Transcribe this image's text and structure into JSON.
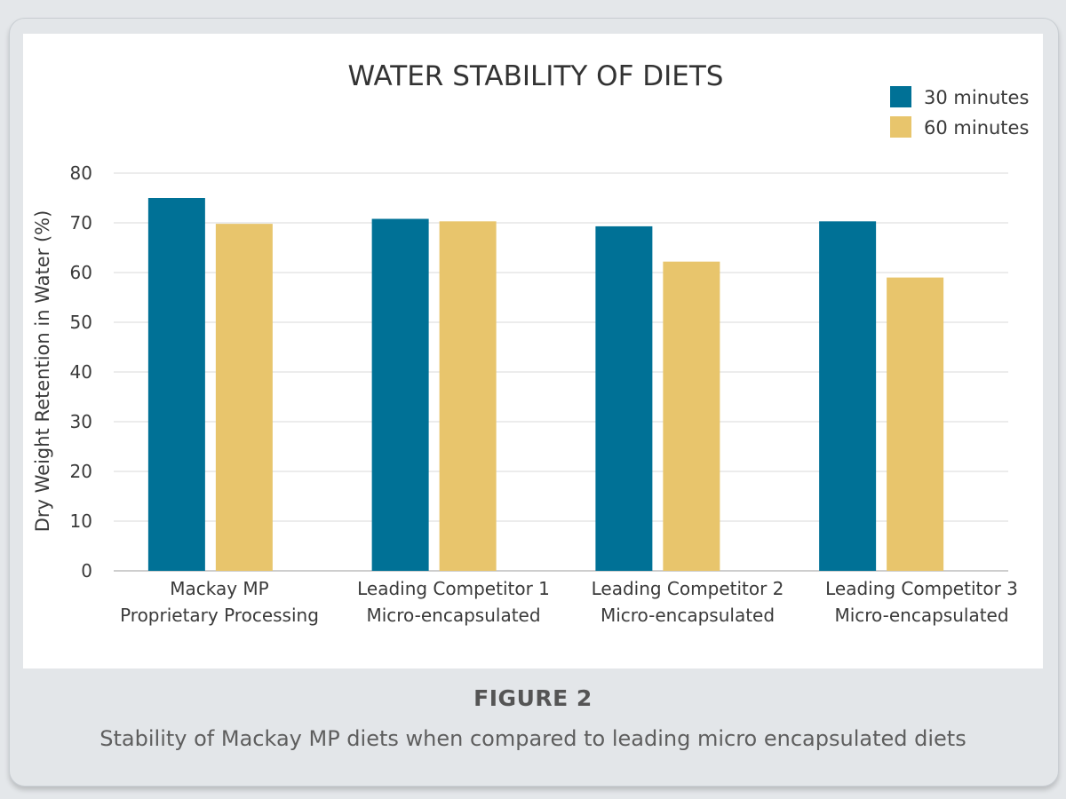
{
  "figure": {
    "label": "FIGURE 2",
    "caption": "Stability of Mackay MP diets when compared to leading micro encapsulated diets"
  },
  "chart_data": {
    "type": "bar",
    "title": "WATER STABILITY OF DIETS",
    "xlabel": "",
    "ylabel": "Dry Weight Retention in Water (%)",
    "ylim": [
      0,
      80
    ],
    "yticks": [
      0,
      10,
      20,
      30,
      40,
      50,
      60,
      70,
      80
    ],
    "grid": true,
    "legend_position": "top-right",
    "categories": [
      [
        "Mackay MP",
        "Proprietary Processing"
      ],
      [
        "Leading Competitor 1",
        "Micro-encapsulated"
      ],
      [
        "Leading Competitor 2",
        "Micro-encapsulated"
      ],
      [
        "Leading Competitor 3",
        "Micro-encapsulated"
      ]
    ],
    "series": [
      {
        "name": "30 minutes",
        "color": "#007196",
        "values": [
          75,
          70.8,
          69.3,
          70.3
        ]
      },
      {
        "name": "60 minutes",
        "color": "#e8c56c",
        "values": [
          69.8,
          70.3,
          62.2,
          59
        ]
      }
    ]
  }
}
